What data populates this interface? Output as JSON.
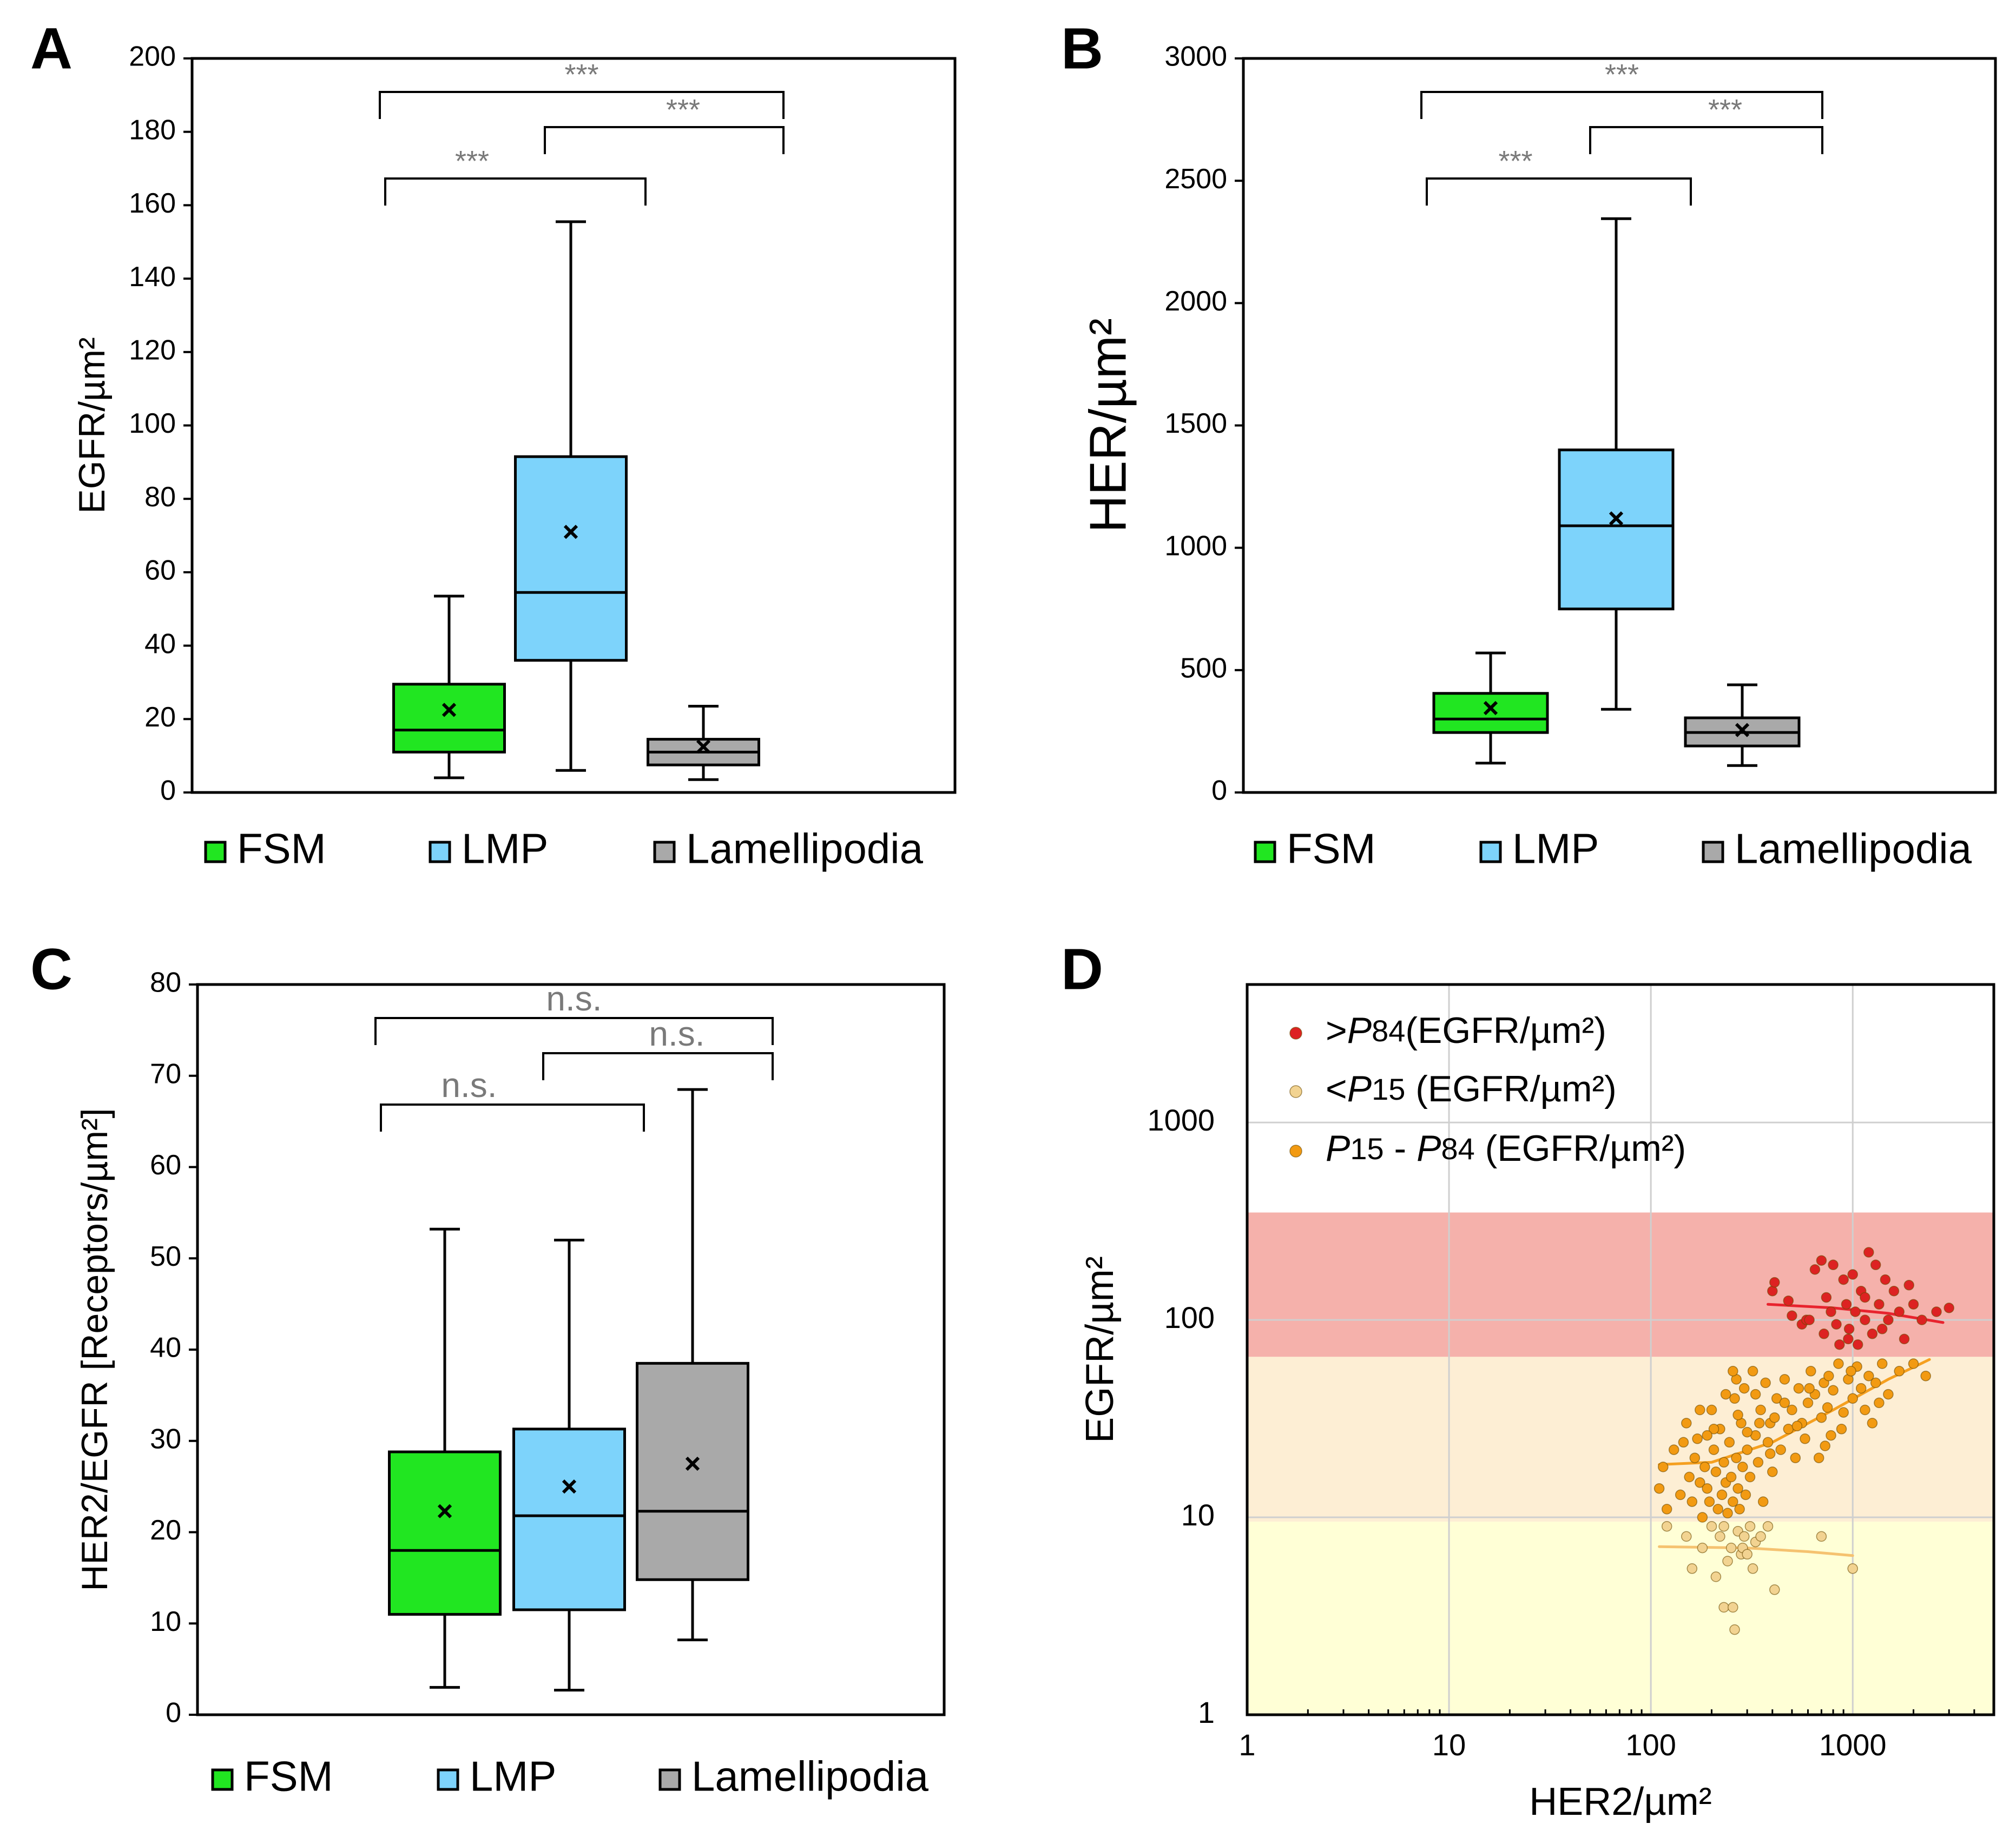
{
  "colors": {
    "FSM": "#21e621",
    "LMP": "#7dd3fb",
    "Lamellipodia": "#a9a9a9",
    "sig_text": "#7a7a7a",
    "high": "#dd2222",
    "low": "#f2d391",
    "mid": "#f29a12",
    "band_high": "#f5b1ab",
    "band_mid": "#fdeed4",
    "band_low": "#ffffd6"
  },
  "chart_data": [
    {
      "panel": "A",
      "type": "box",
      "ylabel": "EGFR/µm²",
      "ylim": [
        0,
        200
      ],
      "yticks": [
        "0",
        "20",
        "40",
        "60",
        "80",
        "100",
        "120",
        "140",
        "160",
        "180",
        "200"
      ],
      "categories": [
        "FSM",
        "LMP",
        "Lamellipodia"
      ],
      "boxes": [
        {
          "name": "FSM",
          "min": 4,
          "q1": 11,
          "median": 17,
          "q3": 29.5,
          "max": 53.5,
          "mean": 22.5
        },
        {
          "name": "LMP",
          "min": 6,
          "q1": 36,
          "median": 54.5,
          "q3": 91.5,
          "max": 155.5,
          "mean": 71
        },
        {
          "name": "Lamellipodia",
          "min": 3.5,
          "q1": 7.5,
          "median": 11,
          "q3": 14.5,
          "max": 23.5,
          "mean": 12.5
        }
      ],
      "comparisons": [
        {
          "from": "FSM",
          "to": "Lamellipodia",
          "label": "***",
          "level": 0
        },
        {
          "from": "LMP",
          "to": "Lamellipodia",
          "label": "***",
          "level": 1
        },
        {
          "from": "FSM",
          "to": "LMP",
          "label": "***",
          "level": 2
        }
      ],
      "legend": [
        "FSM",
        "LMP",
        "Lamellipodia"
      ]
    },
    {
      "panel": "B",
      "type": "box",
      "ylabel": "HER/µm²",
      "ylim": [
        0,
        3000
      ],
      "yticks": [
        "0",
        "500",
        "1000",
        "1500",
        "2000",
        "2500",
        "3000"
      ],
      "categories": [
        "FSM",
        "LMP",
        "Lamellipodia"
      ],
      "boxes": [
        {
          "name": "FSM",
          "min": 120,
          "q1": 245,
          "median": 300,
          "q3": 405,
          "max": 570,
          "mean": 345
        },
        {
          "name": "LMP",
          "min": 340,
          "q1": 750,
          "median": 1090,
          "q3": 1400,
          "max": 2345,
          "mean": 1120
        },
        {
          "name": "Lamellipodia",
          "min": 110,
          "q1": 190,
          "median": 245,
          "q3": 305,
          "max": 440,
          "mean": 255
        }
      ],
      "comparisons": [
        {
          "from": "FSM",
          "to": "Lamellipodia",
          "label": "***",
          "level": 0
        },
        {
          "from": "LMP",
          "to": "Lamellipodia",
          "label": "***",
          "level": 1
        },
        {
          "from": "FSM",
          "to": "LMP",
          "label": "***",
          "level": 2
        }
      ],
      "legend": [
        "FSM",
        "LMP",
        "Lamellipodia"
      ]
    },
    {
      "panel": "C",
      "type": "box",
      "ylabel": "HER2/EGFR [Receptors/µm²]",
      "ylim": [
        0,
        80
      ],
      "yticks": [
        "0",
        "10",
        "20",
        "30",
        "40",
        "50",
        "60",
        "70",
        "80"
      ],
      "categories": [
        "FSM",
        "LMP",
        "Lamellipodia"
      ],
      "boxes": [
        {
          "name": "FSM",
          "min": 3,
          "q1": 11,
          "median": 18,
          "q3": 28.8,
          "max": 53.2,
          "mean": 22.3
        },
        {
          "name": "LMP",
          "min": 2.7,
          "q1": 11.5,
          "median": 21.8,
          "q3": 31.3,
          "max": 52,
          "mean": 25
        },
        {
          "name": "Lamellipodia",
          "min": 8.2,
          "q1": 14.8,
          "median": 22.3,
          "q3": 38.5,
          "max": 68.5,
          "mean": 27.5
        }
      ],
      "comparisons": [
        {
          "from": "FSM",
          "to": "Lamellipodia",
          "label": "n.s.",
          "level": 0
        },
        {
          "from": "LMP",
          "to": "Lamellipodia",
          "label": "n.s.",
          "level": 1
        },
        {
          "from": "FSM",
          "to": "LMP",
          "label": "n.s.",
          "level": 2
        }
      ],
      "legend": [
        "FSM",
        "LMP",
        "Lamellipodia"
      ]
    },
    {
      "panel": "D",
      "type": "scatter",
      "xscale": "log",
      "yscale": "log",
      "xlabel": "HER2/µm²",
      "ylabel": "EGFR/µm²",
      "xlim": [
        1,
        5000
      ],
      "ylim": [
        1,
        5000
      ],
      "xticks": [
        {
          "v": 1,
          "label": "1"
        },
        {
          "v": 10,
          "label": "10"
        },
        {
          "v": 100,
          "label": "100"
        },
        {
          "v": 1000,
          "label": "1000"
        }
      ],
      "yticks": [
        {
          "v": 1,
          "label": "1"
        },
        {
          "v": 10,
          "label": "10"
        },
        {
          "v": 100,
          "label": "100"
        },
        {
          "v": 1000,
          "label": "1000"
        }
      ],
      "bands": [
        {
          "name": "high",
          "from": 65,
          "to": 350
        },
        {
          "name": "mid",
          "from": 9.5,
          "to": 65
        },
        {
          "name": "low",
          "from": 1,
          "to": 9.5
        }
      ],
      "legend_position": "top-left",
      "series": [
        {
          "key": "high",
          "legend_prefix": ">",
          "legend_p1": "P",
          "legend_p1_sub": "84",
          "legend_suffix": "(EGFR/µm²)",
          "points": [
            [
              400,
              140
            ],
            [
              410,
              155
            ],
            [
              500,
              105
            ],
            [
              560,
              95
            ],
            [
              590,
              100
            ],
            [
              610,
              100
            ],
            [
              650,
              180
            ],
            [
              700,
              200
            ],
            [
              720,
              85
            ],
            [
              740,
              130
            ],
            [
              780,
              110
            ],
            [
              800,
              190
            ],
            [
              830,
              95
            ],
            [
              860,
              75
            ],
            [
              900,
              160
            ],
            [
              930,
              120
            ],
            [
              960,
              90
            ],
            [
              1000,
              170
            ],
            [
              1030,
              110
            ],
            [
              1060,
              75
            ],
            [
              1100,
              140
            ],
            [
              1150,
              100
            ],
            [
              1200,
              220
            ],
            [
              1250,
              85
            ],
            [
              1300,
              190
            ],
            [
              1350,
              120
            ],
            [
              1400,
              90
            ],
            [
              1450,
              160
            ],
            [
              1500,
              100
            ],
            [
              1600,
              140
            ],
            [
              1700,
              110
            ],
            [
              1800,
              80
            ],
            [
              1900,
              150
            ],
            [
              2000,
              120
            ],
            [
              2200,
              100
            ],
            [
              2600,
              110
            ],
            [
              3000,
              115
            ],
            [
              480,
              125
            ],
            [
              950,
              80
            ],
            [
              1150,
              130
            ]
          ],
          "fit": [
            [
              380,
              120
            ],
            [
              800,
              115
            ],
            [
              1500,
              108
            ],
            [
              2800,
              97
            ]
          ]
        },
        {
          "key": "low",
          "legend_prefix": "<",
          "legend_p1": "P",
          "legend_p1_sub": "15",
          "legend_suffix": " (EGFR/µm²)",
          "points": [
            [
              120,
              9
            ],
            [
              150,
              8
            ],
            [
              160,
              5.5
            ],
            [
              180,
              7
            ],
            [
              200,
              9
            ],
            [
              210,
              5
            ],
            [
              220,
              8
            ],
            [
              230,
              3.5
            ],
            [
              240,
              6
            ],
            [
              250,
              7
            ],
            [
              255,
              3.5
            ],
            [
              260,
              2.7
            ],
            [
              270,
              8.5
            ],
            [
              280,
              6.5
            ],
            [
              285,
              7
            ],
            [
              290,
              8
            ],
            [
              300,
              6.5
            ],
            [
              310,
              9
            ],
            [
              330,
              7.5
            ],
            [
              350,
              8
            ],
            [
              380,
              9
            ],
            [
              410,
              4.3
            ],
            [
              700,
              8
            ],
            [
              1000,
              5.5
            ],
            [
              230,
              9
            ],
            [
              320,
              5.5
            ]
          ],
          "fit": [
            [
              110,
              7.1
            ],
            [
              300,
              7
            ],
            [
              600,
              6.7
            ],
            [
              1000,
              6.4
            ]
          ]
        },
        {
          "key": "mid",
          "legend_prefix": "",
          "legend_p1": "P",
          "legend_p1_sub": "15",
          "legend_mid": " - ",
          "legend_p2": "P",
          "legend_p2_sub": "84",
          "legend_suffix": " (EGFR/µm²)",
          "points": [
            [
              110,
              14
            ],
            [
              115,
              18
            ],
            [
              120,
              11
            ],
            [
              130,
              22
            ],
            [
              140,
              13
            ],
            [
              150,
              30
            ],
            [
              155,
              16
            ],
            [
              160,
              12
            ],
            [
              165,
              20
            ],
            [
              170,
              25
            ],
            [
              175,
              15
            ],
            [
              180,
              10
            ],
            [
              185,
              18
            ],
            [
              190,
              14
            ],
            [
              195,
              12
            ],
            [
              200,
              35
            ],
            [
              205,
              22
            ],
            [
              210,
              17
            ],
            [
              215,
              11
            ],
            [
              220,
              28
            ],
            [
              225,
              13
            ],
            [
              230,
              19
            ],
            [
              235,
              15
            ],
            [
              240,
              10.5
            ],
            [
              245,
              24
            ],
            [
              250,
              16
            ],
            [
              255,
              12
            ],
            [
              260,
              40
            ],
            [
              265,
              20
            ],
            [
              270,
              14
            ],
            [
              275,
              11
            ],
            [
              280,
              30
            ],
            [
              285,
              18
            ],
            [
              290,
              45
            ],
            [
              295,
              13
            ],
            [
              300,
              22
            ],
            [
              310,
              16
            ],
            [
              320,
              55
            ],
            [
              330,
              26
            ],
            [
              340,
              19
            ],
            [
              350,
              35
            ],
            [
              360,
              12
            ],
            [
              370,
              48
            ],
            [
              380,
              24
            ],
            [
              390,
              30
            ],
            [
              400,
              17
            ],
            [
              420,
              40
            ],
            [
              440,
              22
            ],
            [
              460,
              50
            ],
            [
              480,
              28
            ],
            [
              500,
              35
            ],
            [
              520,
              20
            ],
            [
              540,
              45
            ],
            [
              560,
              30
            ],
            [
              580,
              25
            ],
            [
              600,
              38
            ],
            [
              620,
              55
            ],
            [
              650,
              42
            ],
            [
              680,
              20
            ],
            [
              700,
              32
            ],
            [
              720,
              48
            ],
            [
              750,
              36
            ],
            [
              780,
              26
            ],
            [
              800,
              44
            ],
            [
              850,
              60
            ],
            [
              900,
              34
            ],
            [
              950,
              50
            ],
            [
              1000,
              40
            ],
            [
              1050,
              58
            ],
            [
              1100,
              45
            ],
            [
              1150,
              35
            ],
            [
              1200,
              52
            ],
            [
              1300,
              48
            ],
            [
              1400,
              60
            ],
            [
              1500,
              42
            ],
            [
              1700,
              55
            ],
            [
              2000,
              60
            ],
            [
              2300,
              52
            ],
            [
              270,
              33
            ],
            [
              330,
              42
            ],
            [
              410,
              32
            ],
            [
              460,
              38
            ],
            [
              530,
              29
            ],
            [
              610,
              45
            ],
            [
              730,
              23
            ],
            [
              760,
              52
            ],
            [
              880,
              28
            ],
            [
              980,
              55
            ],
            [
              1250,
              30
            ],
            [
              1350,
              38
            ],
            [
              145,
              24
            ],
            [
              175,
              35
            ],
            [
              205,
              28
            ],
            [
              235,
              42
            ],
            [
              265,
              50
            ],
            [
              300,
              27
            ],
            [
              345,
              30
            ],
            [
              390,
              21
            ],
            [
              255,
              55
            ],
            [
              190,
              26
            ]
          ],
          "fit": [
            [
              110,
              18.5
            ],
            [
              200,
              19
            ],
            [
              400,
              24
            ],
            [
              800,
              35
            ],
            [
              1500,
              50
            ],
            [
              2400,
              63
            ]
          ]
        }
      ]
    }
  ]
}
